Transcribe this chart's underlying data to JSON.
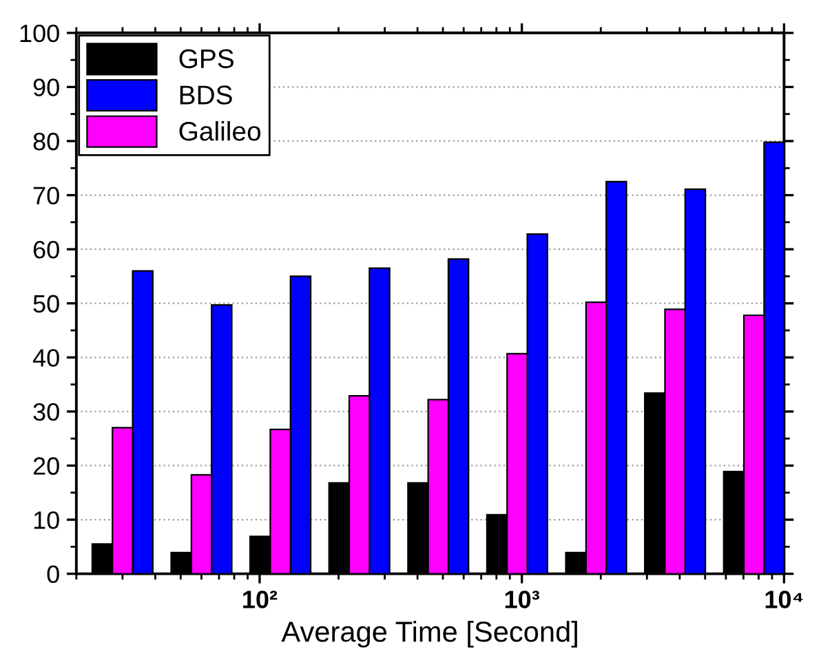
{
  "chart_data": {
    "type": "bar",
    "xlabel": "Average Time [Second]",
    "x": [
      30,
      60,
      120,
      240,
      480,
      960,
      1920,
      3840,
      7680
    ],
    "log": "x",
    "xlim": [
      20,
      10000
    ],
    "xticks": [
      {
        "value": 100,
        "label": "10²"
      },
      {
        "value": 1000,
        "label": "10³"
      },
      {
        "value": 10000,
        "label": "10⁴"
      }
    ],
    "ylim": [
      0,
      100
    ],
    "yticks": [
      0,
      10,
      20,
      30,
      40,
      50,
      60,
      70,
      80,
      90,
      100
    ],
    "grid": "y",
    "legend": "top left",
    "series": [
      {
        "name": "GPS",
        "color": "#000000",
        "values": [
          5.5,
          3.9,
          6.9,
          16.8,
          16.8,
          10.9,
          3.9,
          33.4,
          18.9
        ]
      },
      {
        "name": "BDS",
        "color": "#0000ff",
        "values": [
          56.0,
          49.7,
          55.0,
          56.5,
          58.2,
          62.8,
          72.5,
          71.1,
          79.8
        ]
      },
      {
        "name": "Galileo",
        "color": "#ff00ff",
        "values": [
          27.0,
          18.3,
          26.7,
          32.9,
          32.2,
          40.7,
          50.2,
          48.9,
          47.8
        ]
      }
    ]
  }
}
